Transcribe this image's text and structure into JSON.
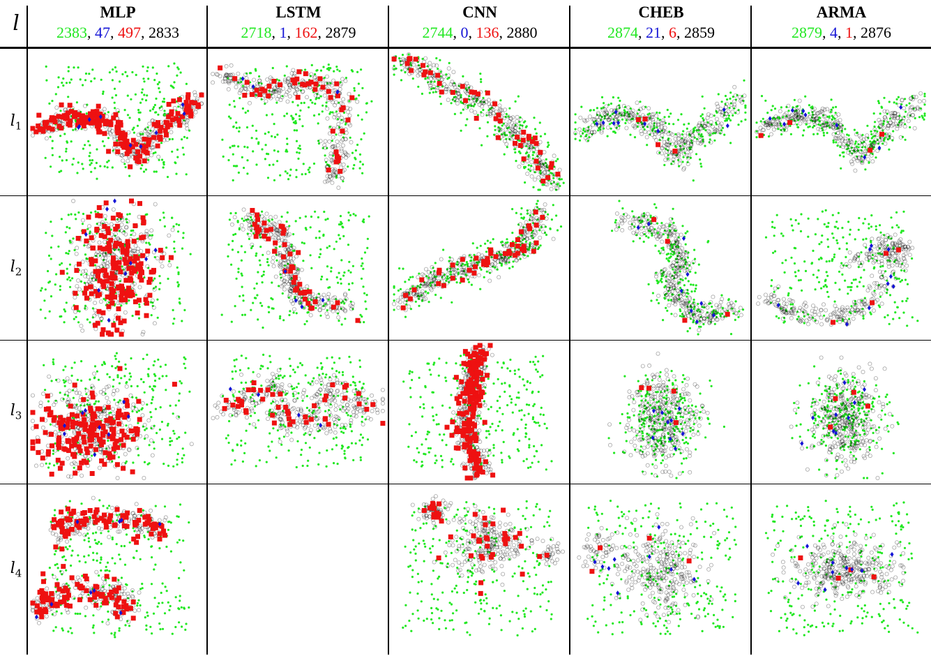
{
  "header": {
    "row_symbol": "l"
  },
  "colors": {
    "green": "#22e822",
    "blue": "#1414d6",
    "red": "#ee1111",
    "black": "#000000"
  },
  "chart_data": {
    "type": "scatter",
    "title": "",
    "rows": [
      {
        "label": "l",
        "sub": "1"
      },
      {
        "label": "l",
        "sub": "2"
      },
      {
        "label": "l",
        "sub": "3"
      },
      {
        "label": "l",
        "sub": "4"
      }
    ],
    "columns": [
      {
        "name": "MLP",
        "counts": {
          "green": "2383",
          "blue": "47",
          "red": "497",
          "black": "2833"
        }
      },
      {
        "name": "LSTM",
        "counts": {
          "green": "2718",
          "blue": "1",
          "red": "162",
          "black": "2879"
        }
      },
      {
        "name": "CNN",
        "counts": {
          "green": "2744",
          "blue": "0",
          "red": "136",
          "black": "2880"
        }
      },
      {
        "name": "CHEB",
        "counts": {
          "green": "2874",
          "blue": "21",
          "red": "6",
          "black": "2859"
        }
      },
      {
        "name": "ARMA",
        "counts": {
          "green": "2879",
          "blue": "4",
          "red": "1",
          "black": "2876"
        }
      }
    ],
    "series": [
      {
        "color": "green",
        "marker": "small dot"
      },
      {
        "color": "blue",
        "marker": "diamond"
      },
      {
        "color": "red",
        "marker": "square"
      },
      {
        "color": "black",
        "marker": "hollow circle"
      }
    ],
    "panels": [
      [
        {
          "shape": "s-band",
          "green": "scatter",
          "black": "band",
          "red": "heavy",
          "blue": "few"
        },
        {
          "shape": "hook",
          "green": "scatter",
          "black": "band",
          "red": "moderate",
          "blue": "rare"
        },
        {
          "shape": "diagonal",
          "green": "halo",
          "black": "band",
          "red": "moderate",
          "blue": "none"
        },
        {
          "shape": "s-band",
          "green": "halo",
          "black": "band",
          "red": "rare",
          "blue": "few"
        },
        {
          "shape": "s-band",
          "green": "halo",
          "black": "band",
          "red": "rare",
          "blue": "few"
        }
      ],
      [
        {
          "shape": "vertical-blob",
          "green": "scatter",
          "black": "blob",
          "red": "heavy",
          "blue": "few"
        },
        {
          "shape": "branching",
          "green": "scatter",
          "black": "band",
          "red": "moderate",
          "blue": "rare"
        },
        {
          "shape": "curve",
          "green": "halo",
          "black": "band",
          "red": "moderate",
          "blue": "none"
        },
        {
          "shape": "s-curve",
          "green": "halo",
          "black": "band",
          "red": "rare",
          "blue": "few"
        },
        {
          "shape": "arc",
          "green": "scatter",
          "black": "band",
          "red": "rare",
          "blue": "few"
        }
      ],
      [
        {
          "shape": "round-blob",
          "green": "scatter",
          "black": "blob",
          "red": "heavy",
          "blue": "few"
        },
        {
          "shape": "arms",
          "green": "scatter",
          "black": "band",
          "red": "moderate",
          "blue": "rare"
        },
        {
          "shape": "vertical-band",
          "green": "scatter",
          "black": "band",
          "red": "heavy",
          "blue": "none"
        },
        {
          "shape": "center-blob",
          "green": "halo",
          "black": "blob",
          "red": "rare",
          "blue": "few"
        },
        {
          "shape": "center-blob",
          "green": "halo",
          "black": "blob",
          "red": "rare",
          "blue": "few"
        }
      ],
      [
        {
          "shape": "two-arcs",
          "green": "scatter",
          "black": "blob",
          "red": "heavy",
          "blue": "few"
        },
        {
          "shape": "empty"
        },
        {
          "shape": "clusters",
          "green": "scatter",
          "black": "blob",
          "red": "moderate",
          "blue": "none"
        },
        {
          "shape": "star-cluster",
          "green": "scatter",
          "black": "blob",
          "red": "rare",
          "blue": "few"
        },
        {
          "shape": "oval",
          "green": "scatter",
          "black": "blob",
          "red": "rare",
          "blue": "few"
        }
      ]
    ]
  }
}
